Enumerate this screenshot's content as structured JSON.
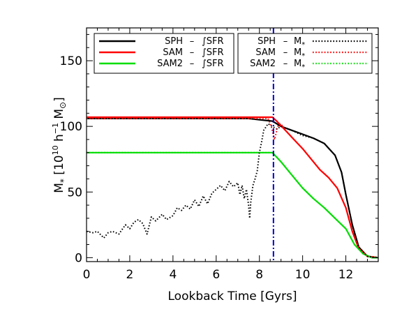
{
  "chart_data": {
    "type": "line",
    "title": "",
    "xlabel": "Lookback Time [Gyrs]",
    "ylabel": "M* [10^10 h^-1 M_sun]",
    "xlim": [
      0,
      13.5
    ],
    "ylim": [
      -3,
      175
    ],
    "xticks": [
      0,
      2,
      4,
      6,
      8,
      10,
      12
    ],
    "yticks": [
      0,
      50,
      100,
      150
    ],
    "grid": false,
    "vline": {
      "x": 8.65,
      "color": "#0000cc",
      "style": "dash-dot"
    },
    "legend_left": {
      "placement": "top-left",
      "entries": [
        {
          "label": "SPH",
          "sep": "–",
          "quantity": "∫SFR",
          "color": "#000000",
          "style": "solid"
        },
        {
          "label": "SAM",
          "sep": "–",
          "quantity": "∫SFR",
          "color": "#ff0000",
          "style": "solid"
        },
        {
          "label": "SAM2",
          "sep": "–",
          "quantity": "∫SFR",
          "color": "#00dd00",
          "style": "solid"
        }
      ]
    },
    "legend_right": {
      "placement": "top-right",
      "entries": [
        {
          "label": "SPH",
          "sep": "–",
          "quantity": "M*",
          "color": "#000000",
          "style": "dotted"
        },
        {
          "label": "SAM",
          "sep": "–",
          "quantity": "M*",
          "color": "#ff0000",
          "style": "dotted"
        },
        {
          "label": "SAM2",
          "sep": "–",
          "quantity": "M*",
          "color": "#00dd00",
          "style": "dotted"
        }
      ]
    },
    "series": [
      {
        "name": "SPH – ∫SFR",
        "color": "#000000",
        "style": "solid",
        "x": [
          0,
          7.5,
          8.0,
          8.6,
          9.0,
          9.5,
          10.0,
          10.5,
          11.0,
          11.5,
          11.8,
          12.0,
          12.3,
          12.6,
          13.0,
          13.5
        ],
        "y": [
          106,
          106,
          105,
          104,
          100,
          97,
          94,
          91,
          87,
          78,
          65,
          48,
          25,
          8,
          1,
          0
        ]
      },
      {
        "name": "SAM – ∫SFR",
        "color": "#ff0000",
        "style": "solid",
        "x": [
          0,
          8.6,
          8.8,
          9.2,
          9.6,
          10.0,
          10.4,
          10.8,
          11.2,
          11.6,
          12.0,
          12.3,
          12.6,
          13.0,
          13.5
        ],
        "y": [
          107,
          107,
          104,
          97,
          90,
          83,
          75,
          67,
          61,
          53,
          38,
          20,
          7,
          1,
          0
        ]
      },
      {
        "name": "SAM2 – ∫SFR",
        "color": "#00dd00",
        "style": "solid",
        "x": [
          0,
          8.6,
          9.0,
          9.5,
          10.0,
          10.5,
          11.0,
          11.5,
          12.0,
          12.4,
          12.8,
          13.2,
          13.5
        ],
        "y": [
          80,
          80,
          73,
          63,
          53,
          45,
          38,
          30,
          22,
          10,
          3,
          0,
          0
        ]
      },
      {
        "name": "SPH – M*",
        "color": "#000000",
        "style": "dotted",
        "x": [
          0,
          0.3,
          0.5,
          0.8,
          1.0,
          1.2,
          1.5,
          1.8,
          2.0,
          2.2,
          2.4,
          2.6,
          2.8,
          3.0,
          3.2,
          3.5,
          3.7,
          4.0,
          4.2,
          4.4,
          4.6,
          4.8,
          5.0,
          5.2,
          5.4,
          5.6,
          5.8,
          6.0,
          6.2,
          6.4,
          6.6,
          6.8,
          7.0,
          7.1,
          7.2,
          7.3,
          7.4,
          7.5,
          7.55,
          7.6,
          7.7,
          7.8,
          7.9,
          8.0,
          8.1,
          8.2,
          8.4,
          8.6,
          8.8,
          9.0,
          9.5,
          10.0,
          10.5,
          11.0,
          11.5,
          11.8,
          12.0,
          12.3,
          12.6,
          13.0,
          13.5
        ],
        "y": [
          20,
          19,
          20,
          15,
          19,
          20,
          18,
          25,
          22,
          27,
          29,
          26,
          18,
          31,
          28,
          33,
          29,
          32,
          38,
          36,
          40,
          37,
          44,
          39,
          47,
          41,
          49,
          52,
          55,
          51,
          58,
          54,
          57,
          48,
          55,
          45,
          52,
          40,
          30,
          42,
          55,
          60,
          66,
          80,
          88,
          97,
          102,
          100,
          98,
          100,
          97,
          93,
          91,
          87,
          78,
          65,
          48,
          25,
          8,
          1,
          0
        ]
      },
      {
        "name": "SAM – M*",
        "color": "#ff0000",
        "style": "dotted",
        "x": [
          0,
          8.4,
          8.55,
          8.7,
          8.85,
          9.0,
          9.2,
          9.6,
          10.0,
          10.4,
          10.8,
          11.2,
          11.6,
          12.0,
          12.3,
          12.6,
          13.0,
          13.5
        ],
        "y": [
          106,
          106,
          100,
          90,
          100,
          102,
          97,
          90,
          83,
          75,
          67,
          61,
          53,
          38,
          20,
          7,
          1,
          0
        ]
      },
      {
        "name": "SAM2 – M*",
        "color": "#00dd00",
        "style": "dotted",
        "x": [
          0,
          8.6,
          9.0,
          9.5,
          10.0,
          10.5,
          11.0,
          11.5,
          12.0,
          12.4,
          12.8,
          13.2,
          13.5
        ],
        "y": [
          80,
          80,
          73,
          63,
          53,
          45,
          38,
          30,
          22,
          10,
          3,
          0,
          0
        ]
      }
    ]
  }
}
